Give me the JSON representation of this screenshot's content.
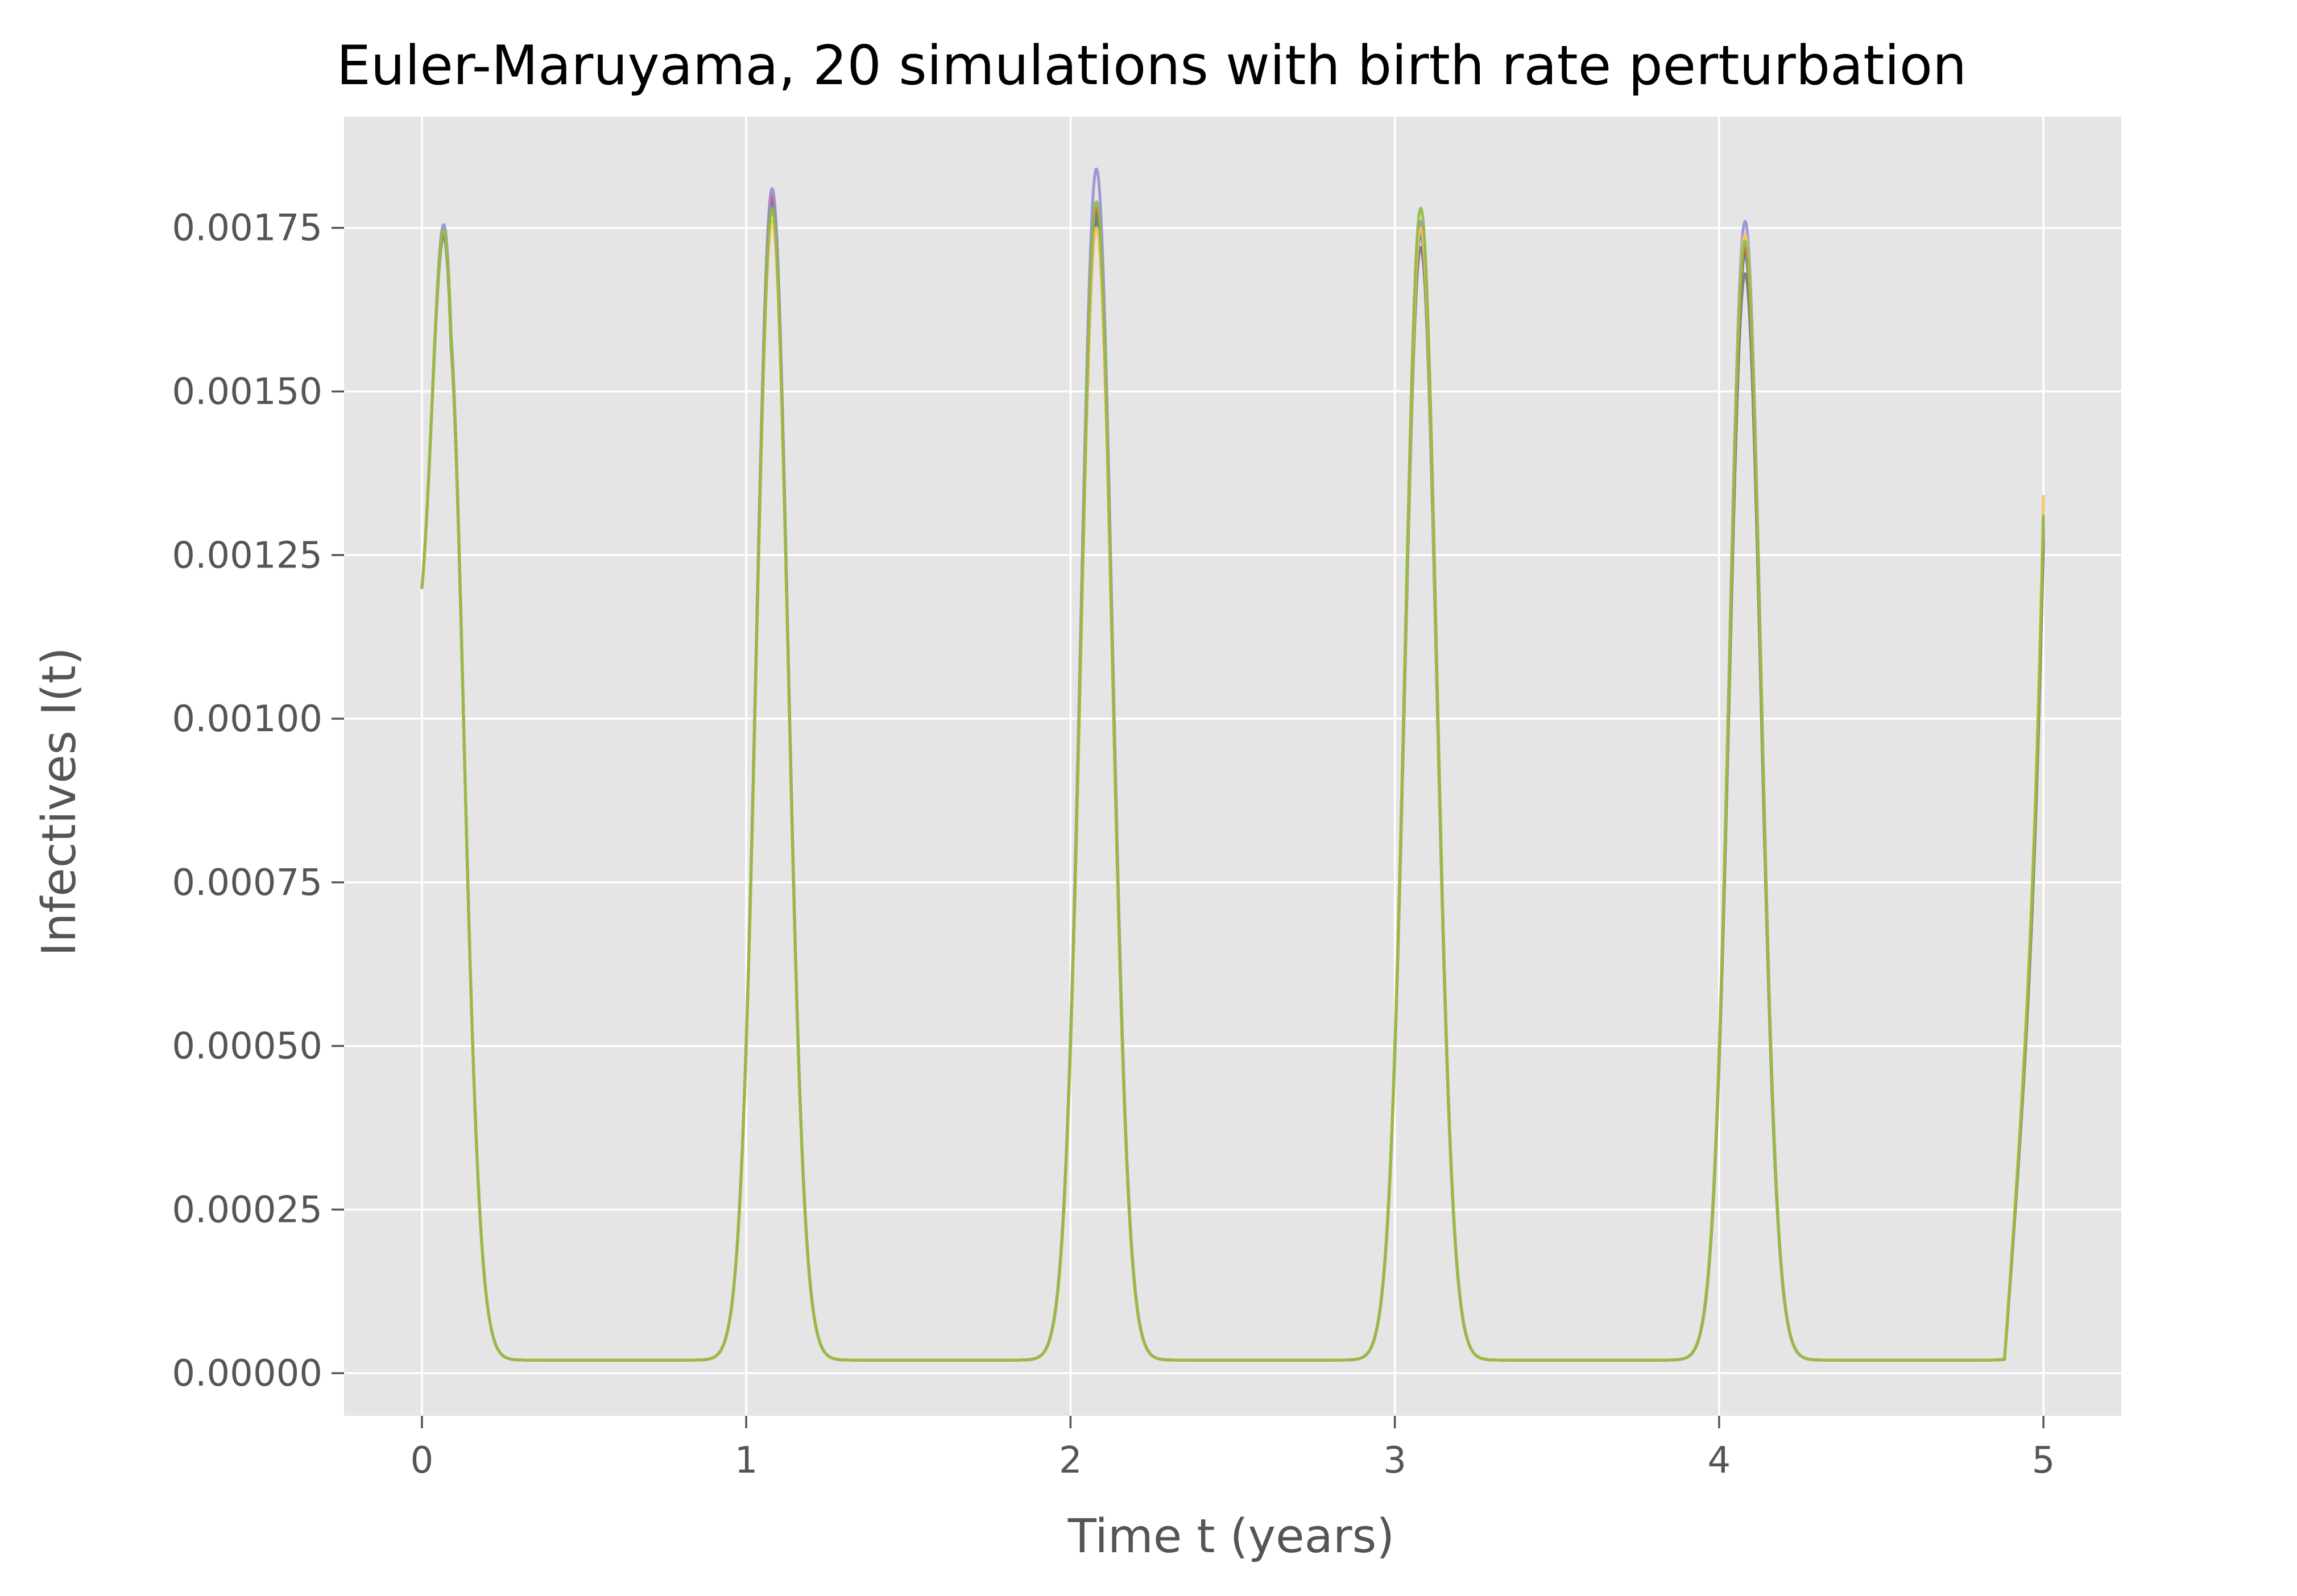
{
  "chart_data": {
    "type": "line",
    "title": "Euler-Maruyama, 20 simulations  with birth rate perturbation",
    "xlabel": "Time t (years)",
    "ylabel": "Infectives I(t)",
    "xlim": [
      -0.24,
      5.24
    ],
    "ylim": [
      -6.5e-05,
      0.00192
    ],
    "xticks": [
      0,
      1,
      2,
      3,
      4,
      5
    ],
    "xtick_labels": [
      "0",
      "1",
      "2",
      "3",
      "4",
      "5"
    ],
    "yticks": [
      0,
      0.00025,
      0.0005,
      0.00075,
      0.001,
      0.00125,
      0.0015,
      0.00175
    ],
    "ytick_labels": [
      "0.00000",
      "0.00025",
      "0.00050",
      "0.00075",
      "0.00100",
      "0.00125",
      "0.00150",
      "0.00175"
    ],
    "grid": true,
    "legend": "none",
    "background": "#e5e5e5",
    "model": {
      "period_years": 1.0,
      "peak_offset_years": 0.08,
      "trough_value": 2e-05,
      "sharpness": 10.5,
      "start": [
        0,
        0.0012
      ],
      "first_peak": [
        0.09,
        0.00161
      ],
      "end_x": 5.0,
      "end_value": 0.00129
    },
    "series": [
      {
        "color": "#348ABD",
        "peaks": [
          0.00161,
          0.00179,
          0.00177,
          0.00174,
          0.00171
        ],
        "end": 0.00128
      },
      {
        "color": "#E24A33",
        "peaks": [
          0.00161,
          0.0018,
          0.00178,
          0.00175,
          0.00172
        ],
        "end": 0.00129
      },
      {
        "color": "#988ED5",
        "peaks": [
          0.00162,
          0.00181,
          0.00184,
          0.00176,
          0.00176
        ],
        "end": 0.0013
      },
      {
        "color": "#777777",
        "peaks": [
          0.0016,
          0.00178,
          0.00176,
          0.00172,
          0.00168
        ],
        "end": 0.00127
      },
      {
        "color": "#FBC15E",
        "peaks": [
          0.00161,
          0.00176,
          0.00175,
          0.00175,
          0.00174
        ],
        "end": 0.00134
      },
      {
        "color": "#8EBA42",
        "peaks": [
          0.00161,
          0.00178,
          0.00179,
          0.00178,
          0.00173
        ],
        "end": 0.00131
      }
    ]
  }
}
